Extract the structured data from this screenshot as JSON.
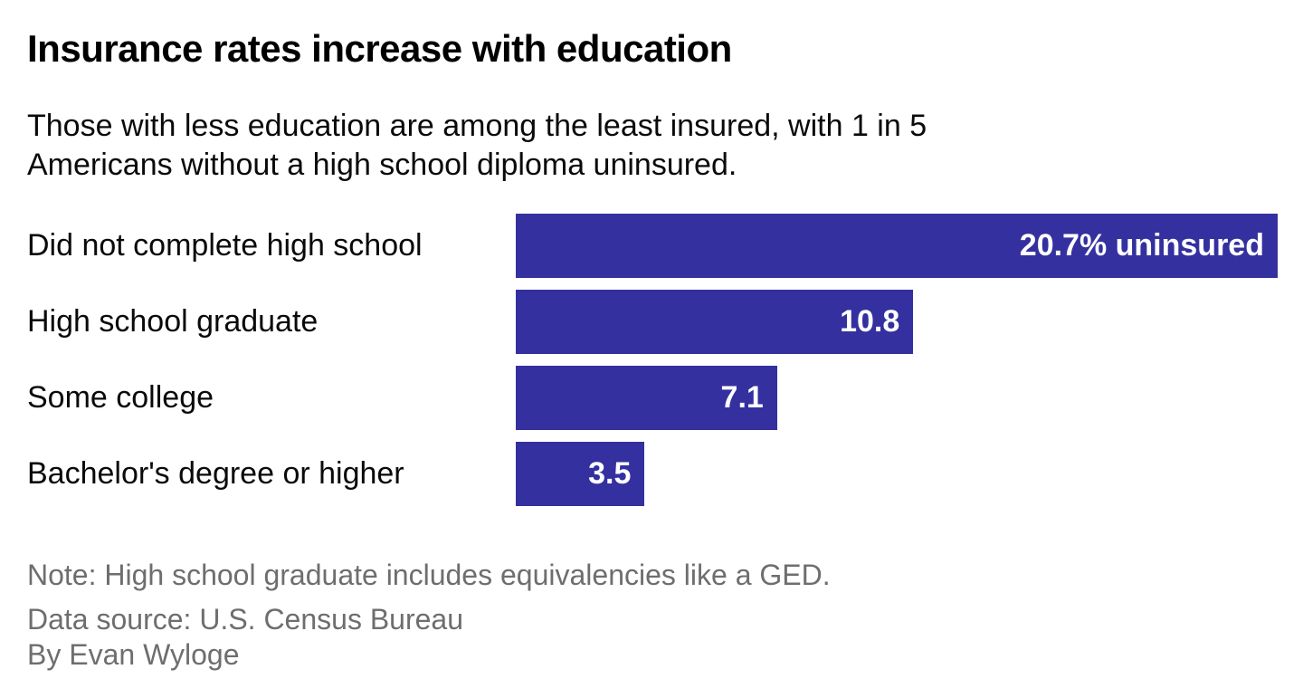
{
  "title": "Insurance rates increase with education",
  "subtitle": {
    "lines": [
      "Those with less education are among the least insured, with 1 in 5",
      "Americans without a high school diploma uninsured."
    ],
    "full_text": "Those with less education are among the least insured, with 1 in 5 Americans without a high school diploma uninsured."
  },
  "chart_data": {
    "type": "bar",
    "orientation": "horizontal",
    "title": "Insurance rates increase with education",
    "subtitle": "Those with less education are among the least insured, with 1 in 5 Americans without a high school diploma uninsured.",
    "categories": [
      "Did not complete high school",
      "High school graduate",
      "Some college",
      "Bachelor's degree or higher"
    ],
    "values": [
      20.7,
      10.8,
      7.1,
      3.5
    ],
    "value_labels": [
      "20.7% uninsured",
      "10.8",
      "7.1",
      "3.5"
    ],
    "unit": "% uninsured",
    "xlim": [
      0,
      20.7
    ],
    "grid": "off",
    "axes_visible": false,
    "legend": "none",
    "value_label_position": "inside-end",
    "bar_color": "#34309f",
    "value_label_color": "#ffffff"
  },
  "notes": {
    "note": "Note: High school graduate includes equivalencies like a GED.",
    "source": "Data source: U.S. Census Bureau",
    "byline": "By Evan Wyloge"
  },
  "colors": {
    "background": "#ffffff",
    "title_text": "#000000",
    "body_text": "#0a0a0a",
    "note_text": "#6e6e6e",
    "bar": "#34309f",
    "bar_value_text": "#ffffff"
  }
}
